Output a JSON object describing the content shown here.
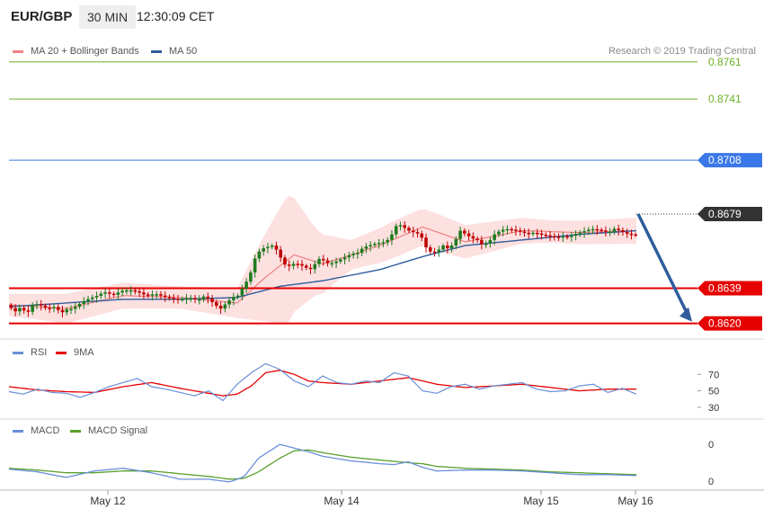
{
  "header": {
    "symbol": "EUR/GBP",
    "timeframe": "30 MIN",
    "clock": "12:30:09 CET"
  },
  "legend_main": {
    "ma20_label": "MA 20 + Bollinger Bands",
    "ma50_label": "MA 50",
    "copyright": "Research © 2019 Trading Central"
  },
  "legend_rsi": {
    "rsi_label": "RSI",
    "ma9_label": "9MA"
  },
  "legend_macd": {
    "macd_label": "MACD",
    "signal_label": "MACD Signal"
  },
  "colors": {
    "ma20": "#f08080",
    "bollinger_fill": "#fde0e0",
    "ma50": "#2f5d9c",
    "up_candle": "#1e7b1e",
    "down_candle": "#c00000",
    "target_line": "#6ab023",
    "resistance_line": "#3b78e7",
    "support_line": "#e60000",
    "rsi_line": "#6a8fd8",
    "rsi_ma": "#e60000",
    "macd_line": "#6a8fd8",
    "macd_signal": "#5aa02c",
    "arrow": "#2f5d9c"
  },
  "chart_data": [
    {
      "type": "candlestick",
      "title": "EUR/GBP 30 MIN",
      "ylim": [
        0.8614,
        0.8775
      ],
      "x_ticks": [
        "May 12",
        "May 14",
        "May 15",
        "May 16"
      ],
      "levels": [
        {
          "label": "0.8761",
          "value": 0.8761,
          "style": "target"
        },
        {
          "label": "0.8741",
          "value": 0.8741,
          "style": "target"
        },
        {
          "label": "0.8708",
          "value": 0.8708,
          "style": "resistance"
        },
        {
          "label": "0.8679",
          "value": 0.8679,
          "style": "current"
        },
        {
          "label": "0.8639",
          "value": 0.8639,
          "style": "support"
        },
        {
          "label": "0.8620",
          "value": 0.862,
          "style": "support"
        }
      ],
      "price_path": [
        [
          0,
          0.863
        ],
        [
          6,
          0.86265
        ],
        [
          10,
          0.8629
        ],
        [
          14,
          0.8625
        ],
        [
          18,
          0.863
        ],
        [
          22,
          0.86305
        ],
        [
          28,
          0.8628
        ],
        [
          34,
          0.8629
        ],
        [
          38,
          0.86255
        ],
        [
          42,
          0.86275
        ],
        [
          46,
          0.8628
        ],
        [
          50,
          0.863
        ],
        [
          54,
          0.8632
        ],
        [
          58,
          0.86335
        ],
        [
          62,
          0.86345
        ],
        [
          66,
          0.8636
        ],
        [
          70,
          0.8637
        ],
        [
          74,
          0.8635
        ],
        [
          80,
          0.86375
        ],
        [
          86,
          0.8638
        ],
        [
          92,
          0.8637
        ],
        [
          98,
          0.8635
        ],
        [
          104,
          0.8636
        ],
        [
          110,
          0.86345
        ],
        [
          116,
          0.86335
        ],
        [
          122,
          0.8633
        ],
        [
          128,
          0.8634
        ],
        [
          134,
          0.86325
        ],
        [
          138,
          0.86345
        ],
        [
          142,
          0.8633
        ],
        [
          146,
          0.863
        ],
        [
          150,
          0.8628
        ],
        [
          154,
          0.8631
        ],
        [
          158,
          0.8634
        ],
        [
          162,
          0.8635
        ],
        [
          166,
          0.864
        ],
        [
          170,
          0.8645
        ],
        [
          174,
          0.8655
        ],
        [
          178,
          0.866
        ],
        [
          182,
          0.8661
        ],
        [
          186,
          0.8662
        ],
        [
          190,
          0.8659
        ],
        [
          194,
          0.8652
        ],
        [
          198,
          0.8651
        ],
        [
          202,
          0.86525
        ],
        [
          206,
          0.86515
        ],
        [
          210,
          0.865
        ],
        [
          214,
          0.8649
        ],
        [
          218,
          0.8655
        ],
        [
          222,
          0.8654
        ],
        [
          226,
          0.8652
        ],
        [
          230,
          0.8653
        ],
        [
          234,
          0.86545
        ],
        [
          238,
          0.8656
        ],
        [
          242,
          0.86575
        ],
        [
          246,
          0.8658
        ],
        [
          250,
          0.8661
        ],
        [
          254,
          0.8662
        ],
        [
          258,
          0.8663
        ],
        [
          262,
          0.86635
        ],
        [
          266,
          0.8664
        ],
        [
          270,
          0.8668
        ],
        [
          274,
          0.8674
        ],
        [
          278,
          0.8672
        ],
        [
          282,
          0.867
        ],
        [
          286,
          0.8669
        ],
        [
          290,
          0.8668
        ],
        [
          294,
          0.8661
        ],
        [
          298,
          0.8658
        ],
        [
          302,
          0.8659
        ],
        [
          306,
          0.8662
        ],
        [
          310,
          0.866
        ],
        [
          314,
          0.8664
        ],
        [
          318,
          0.867
        ],
        [
          322,
          0.8668
        ],
        [
          326,
          0.8666
        ],
        [
          330,
          0.8665
        ],
        [
          334,
          0.8662
        ],
        [
          338,
          0.8664
        ],
        [
          342,
          0.8668
        ],
        [
          346,
          0.867
        ],
        [
          350,
          0.8671
        ],
        [
          354,
          0.86705
        ],
        [
          358,
          0.867
        ],
        [
          362,
          0.8669
        ],
        [
          366,
          0.86685
        ],
        [
          370,
          0.8669
        ],
        [
          374,
          0.8668
        ],
        [
          378,
          0.86675
        ],
        [
          382,
          0.8667
        ],
        [
          386,
          0.86665
        ],
        [
          390,
          0.8667
        ],
        [
          394,
          0.86665
        ],
        [
          398,
          0.8668
        ],
        [
          402,
          0.8669
        ],
        [
          406,
          0.867
        ],
        [
          410,
          0.8671
        ],
        [
          414,
          0.86705
        ],
        [
          418,
          0.867
        ],
        [
          422,
          0.8669
        ],
        [
          426,
          0.8671
        ],
        [
          430,
          0.867
        ],
        [
          434,
          0.86685
        ],
        [
          438,
          0.8668
        ],
        [
          440,
          0.86679
        ]
      ],
      "series": [
        {
          "name": "MA 20 + Bollinger Bands",
          "ma": [
            [
              0,
              0.863
            ],
            [
              40,
              0.8628
            ],
            [
              80,
              0.8635
            ],
            [
              120,
              0.8634
            ],
            [
              160,
              0.8631
            ],
            [
              180,
              0.8645
            ],
            [
              200,
              0.8657
            ],
            [
              220,
              0.8652
            ],
            [
              260,
              0.8662
            ],
            [
              290,
              0.8672
            ],
            [
              320,
              0.8664
            ],
            [
              360,
              0.867
            ],
            [
              400,
              0.8669
            ],
            [
              440,
              0.867
            ]
          ],
          "band_width": [
            [
              0,
              0.0006
            ],
            [
              40,
              0.0008
            ],
            [
              80,
              0.0007
            ],
            [
              120,
              0.0006
            ],
            [
              160,
              0.0008
            ],
            [
              175,
              0.002
            ],
            [
              195,
              0.0035
            ],
            [
              215,
              0.0018
            ],
            [
              240,
              0.0008
            ],
            [
              270,
              0.001
            ],
            [
              300,
              0.001
            ],
            [
              340,
              0.0008
            ],
            [
              380,
              0.0006
            ],
            [
              440,
              0.0007
            ]
          ]
        },
        {
          "name": "MA 50",
          "ma": [
            [
              0,
              0.8629
            ],
            [
              40,
              0.8631
            ],
            [
              80,
              0.8633
            ],
            [
              120,
              0.8633
            ],
            [
              160,
              0.8634
            ],
            [
              190,
              0.864
            ],
            [
              220,
              0.8643
            ],
            [
              260,
              0.8649
            ],
            [
              290,
              0.8656
            ],
            [
              320,
              0.8662
            ],
            [
              360,
              0.8665
            ],
            [
              400,
              0.8668
            ],
            [
              440,
              0.867
            ]
          ]
        }
      ],
      "forecast_arrow": {
        "from": 0.8679,
        "to": 0.862
      }
    },
    {
      "type": "line",
      "title": "RSI",
      "ylim": [
        20,
        90
      ],
      "y_ticks": [
        70,
        50,
        30
      ],
      "series": [
        {
          "name": "RSI",
          "values": [
            [
              0,
              49
            ],
            [
              10,
              46
            ],
            [
              20,
              52
            ],
            [
              30,
              48
            ],
            [
              40,
              47
            ],
            [
              50,
              42
            ],
            [
              60,
              48
            ],
            [
              70,
              55
            ],
            [
              80,
              60
            ],
            [
              90,
              65
            ],
            [
              100,
              55
            ],
            [
              110,
              52
            ],
            [
              120,
              48
            ],
            [
              130,
              44
            ],
            [
              140,
              50
            ],
            [
              150,
              38
            ],
            [
              160,
              58
            ],
            [
              170,
              72
            ],
            [
              180,
              83
            ],
            [
              190,
              76
            ],
            [
              200,
              62
            ],
            [
              210,
              55
            ],
            [
              220,
              68
            ],
            [
              230,
              60
            ],
            [
              240,
              58
            ],
            [
              250,
              62
            ],
            [
              260,
              60
            ],
            [
              270,
              72
            ],
            [
              280,
              68
            ],
            [
              290,
              50
            ],
            [
              300,
              47
            ],
            [
              310,
              55
            ],
            [
              320,
              58
            ],
            [
              330,
              52
            ],
            [
              340,
              56
            ],
            [
              350,
              58
            ],
            [
              360,
              60
            ],
            [
              370,
              52
            ],
            [
              380,
              49
            ],
            [
              390,
              50
            ],
            [
              400,
              56
            ],
            [
              410,
              58
            ],
            [
              420,
              48
            ],
            [
              430,
              53
            ],
            [
              440,
              46
            ]
          ]
        },
        {
          "name": "9MA",
          "values": [
            [
              0,
              55
            ],
            [
              20,
              51
            ],
            [
              40,
              49
            ],
            [
              60,
              48
            ],
            [
              80,
              55
            ],
            [
              100,
              60
            ],
            [
              120,
              53
            ],
            [
              140,
              47
            ],
            [
              150,
              44
            ],
            [
              160,
              46
            ],
            [
              170,
              56
            ],
            [
              180,
              72
            ],
            [
              190,
              75
            ],
            [
              200,
              70
            ],
            [
              210,
              62
            ],
            [
              220,
              60
            ],
            [
              240,
              58
            ],
            [
              260,
              62
            ],
            [
              280,
              66
            ],
            [
              300,
              58
            ],
            [
              320,
              54
            ],
            [
              340,
              56
            ],
            [
              360,
              58
            ],
            [
              380,
              54
            ],
            [
              400,
              50
            ],
            [
              420,
              52
            ],
            [
              440,
              52
            ]
          ]
        }
      ]
    },
    {
      "type": "line",
      "title": "MACD",
      "ylim": [
        -0.001,
        0.0045
      ],
      "y_ticks": [
        0,
        0
      ],
      "series": [
        {
          "name": "MACD",
          "values": [
            [
              0,
              0.0008
            ],
            [
              20,
              0.0005
            ],
            [
              40,
              -0.0001
            ],
            [
              60,
              0.0006
            ],
            [
              80,
              0.0009
            ],
            [
              100,
              0.0004
            ],
            [
              120,
              -0.0003
            ],
            [
              140,
              -0.0003
            ],
            [
              155,
              -0.0006
            ],
            [
              165,
              0.0
            ],
            [
              175,
              0.002
            ],
            [
              190,
              0.0035
            ],
            [
              200,
              0.0031
            ],
            [
              210,
              0.0027
            ],
            [
              220,
              0.0022
            ],
            [
              240,
              0.0017
            ],
            [
              260,
              0.0014
            ],
            [
              270,
              0.0013
            ],
            [
              280,
              0.0016
            ],
            [
              290,
              0.001
            ],
            [
              300,
              0.0006
            ],
            [
              320,
              0.0007
            ],
            [
              340,
              0.0007
            ],
            [
              360,
              0.0006
            ],
            [
              380,
              0.0004
            ],
            [
              400,
              0.0002
            ],
            [
              420,
              0.0002
            ],
            [
              440,
              0.0001
            ]
          ]
        },
        {
          "name": "MACD Signal",
          "values": [
            [
              0,
              0.0009
            ],
            [
              20,
              0.0007
            ],
            [
              40,
              0.0004
            ],
            [
              60,
              0.0004
            ],
            [
              80,
              0.0006
            ],
            [
              100,
              0.0006
            ],
            [
              120,
              0.0003
            ],
            [
              140,
              0.0
            ],
            [
              155,
              -0.0003
            ],
            [
              165,
              -0.0002
            ],
            [
              175,
              0.0005
            ],
            [
              190,
              0.002
            ],
            [
              200,
              0.0028
            ],
            [
              210,
              0.0029
            ],
            [
              220,
              0.0026
            ],
            [
              240,
              0.0021
            ],
            [
              260,
              0.0018
            ],
            [
              280,
              0.0015
            ],
            [
              290,
              0.0014
            ],
            [
              300,
              0.0011
            ],
            [
              320,
              0.0009
            ],
            [
              340,
              0.0008
            ],
            [
              360,
              0.0007
            ],
            [
              380,
              0.0005
            ],
            [
              400,
              0.0004
            ],
            [
              420,
              0.0003
            ],
            [
              440,
              0.0002
            ]
          ]
        }
      ]
    }
  ]
}
